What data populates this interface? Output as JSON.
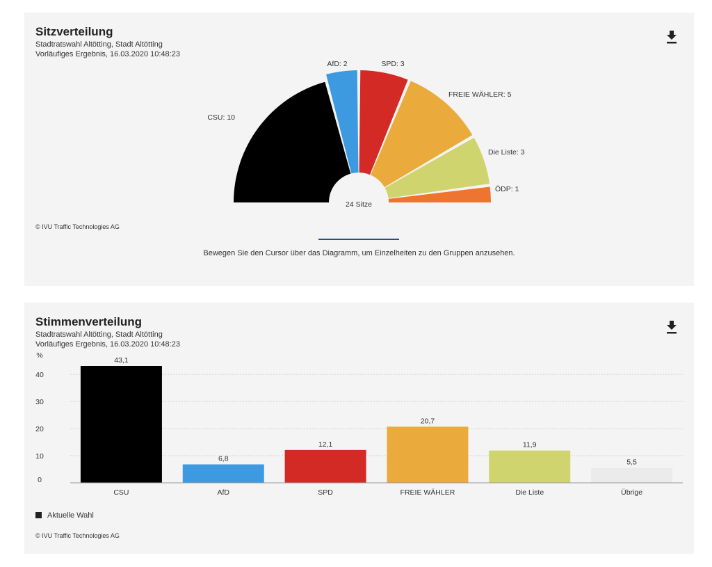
{
  "seats": {
    "title": "Sitzverteilung",
    "subtitle1": "Stadtratswahl Altötting, Stadt Altötting",
    "subtitle2": "Vorläufiges Ergebnis, 16.03.2020 10:48:23",
    "total_label": "24 Sitze",
    "credit": "© IVU Traffic Technologies AG",
    "hint": "Bewegen Sie den Cursor über das Diagramm, um Einzelheiten zu den Gruppen anzusehen.",
    "download_icon": "download-icon"
  },
  "votes": {
    "title": "Stimmenverteilung",
    "subtitle1": "Stadtratswahl Altötting, Stadt Altötting",
    "subtitle2": "Vorläufiges Ergebnis, 16.03.2020 10:48:23",
    "legend": "Aktuelle Wahl",
    "credit": "© IVU Traffic Technologies AG",
    "download_icon": "download-icon"
  },
  "chart_data": [
    {
      "type": "pie",
      "variant": "semicircle",
      "title": "Sitzverteilung",
      "categories": [
        "CSU",
        "AfD",
        "SPD",
        "FREIE WÄHLER",
        "Die Liste",
        "ÖDP"
      ],
      "values": [
        10,
        2,
        3,
        5,
        3,
        1
      ],
      "labels": [
        "CSU: 10",
        "AfD: 2",
        "SPD: 3",
        "FREIE WÄHLER: 5",
        "Die Liste: 3",
        "ÖDP: 1"
      ],
      "colors": [
        "#000000",
        "#3d9ae0",
        "#d42a25",
        "#eaab3c",
        "#cfd46f",
        "#ee7530"
      ],
      "center_label": "24 Sitze"
    },
    {
      "type": "bar",
      "title": "Stimmenverteilung",
      "categories": [
        "CSU",
        "AfD",
        "SPD",
        "FREIE WÄHLER",
        "Die Liste",
        "Übrige"
      ],
      "series": [
        {
          "name": "Aktuelle Wahl",
          "values": [
            43.1,
            6.8,
            12.1,
            20.7,
            11.9,
            5.5
          ]
        }
      ],
      "value_labels": [
        "43,1",
        "6,8",
        "12,1",
        "20,7",
        "11,9",
        "5,5"
      ],
      "colors": [
        "#000000",
        "#3d9ae0",
        "#d42a25",
        "#eaab3c",
        "#cfd46f",
        "#ebebeb"
      ],
      "ylabel": "%",
      "yticks": [
        0,
        10,
        20,
        30,
        40
      ],
      "ylim": [
        0,
        43.1
      ],
      "grid": true,
      "legend_position": "bottom-left"
    }
  ]
}
